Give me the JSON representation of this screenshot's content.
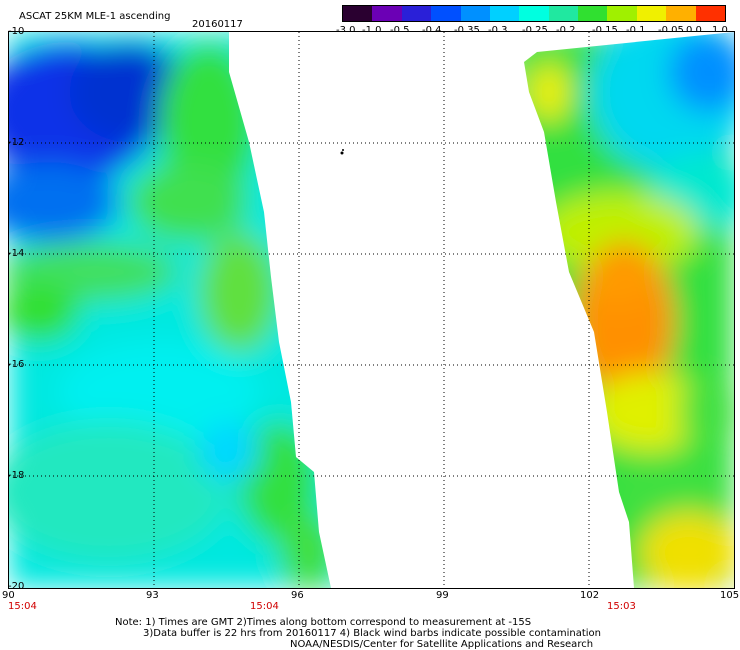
{
  "header": {
    "title": "ASCAT 25KM MLE-1 ascending",
    "date": "20160117"
  },
  "colorbar": {
    "labels": [
      "-3.0",
      "-1.0",
      "-0.5",
      "-0.4",
      "-0.35",
      "-0.3",
      "-0.25",
      "-0.2",
      "-0.15",
      "-0.1",
      "-0.05",
      "0.0",
      "1.0"
    ],
    "colors": [
      "#2a0030",
      "#6b00b5",
      "#2a20d8",
      "#0050ff",
      "#0090ff",
      "#00d0ff",
      "#00ffe0",
      "#20e8a0",
      "#30e030",
      "#a0f000",
      "#f0f000",
      "#ffb000",
      "#ff3000"
    ]
  },
  "axes": {
    "lat_labels": [
      "-10",
      "-12",
      "-14",
      "-16",
      "-18",
      "-20"
    ],
    "lon_labels": [
      "90",
      "93",
      "96",
      "99",
      "102",
      "105"
    ]
  },
  "times": [
    "15:04",
    "15:04",
    "15:03"
  ],
  "notes": {
    "line1": "Note: 1) Times are GMT 2)Times along bottom correspond to measurement at -15S",
    "line2": "3)Data buffer is 22 hrs from 20160117 4) Black wind barbs indicate possible contamination",
    "line3": "NOAA/NESDIS/Center for Satellite Applications and Research"
  }
}
